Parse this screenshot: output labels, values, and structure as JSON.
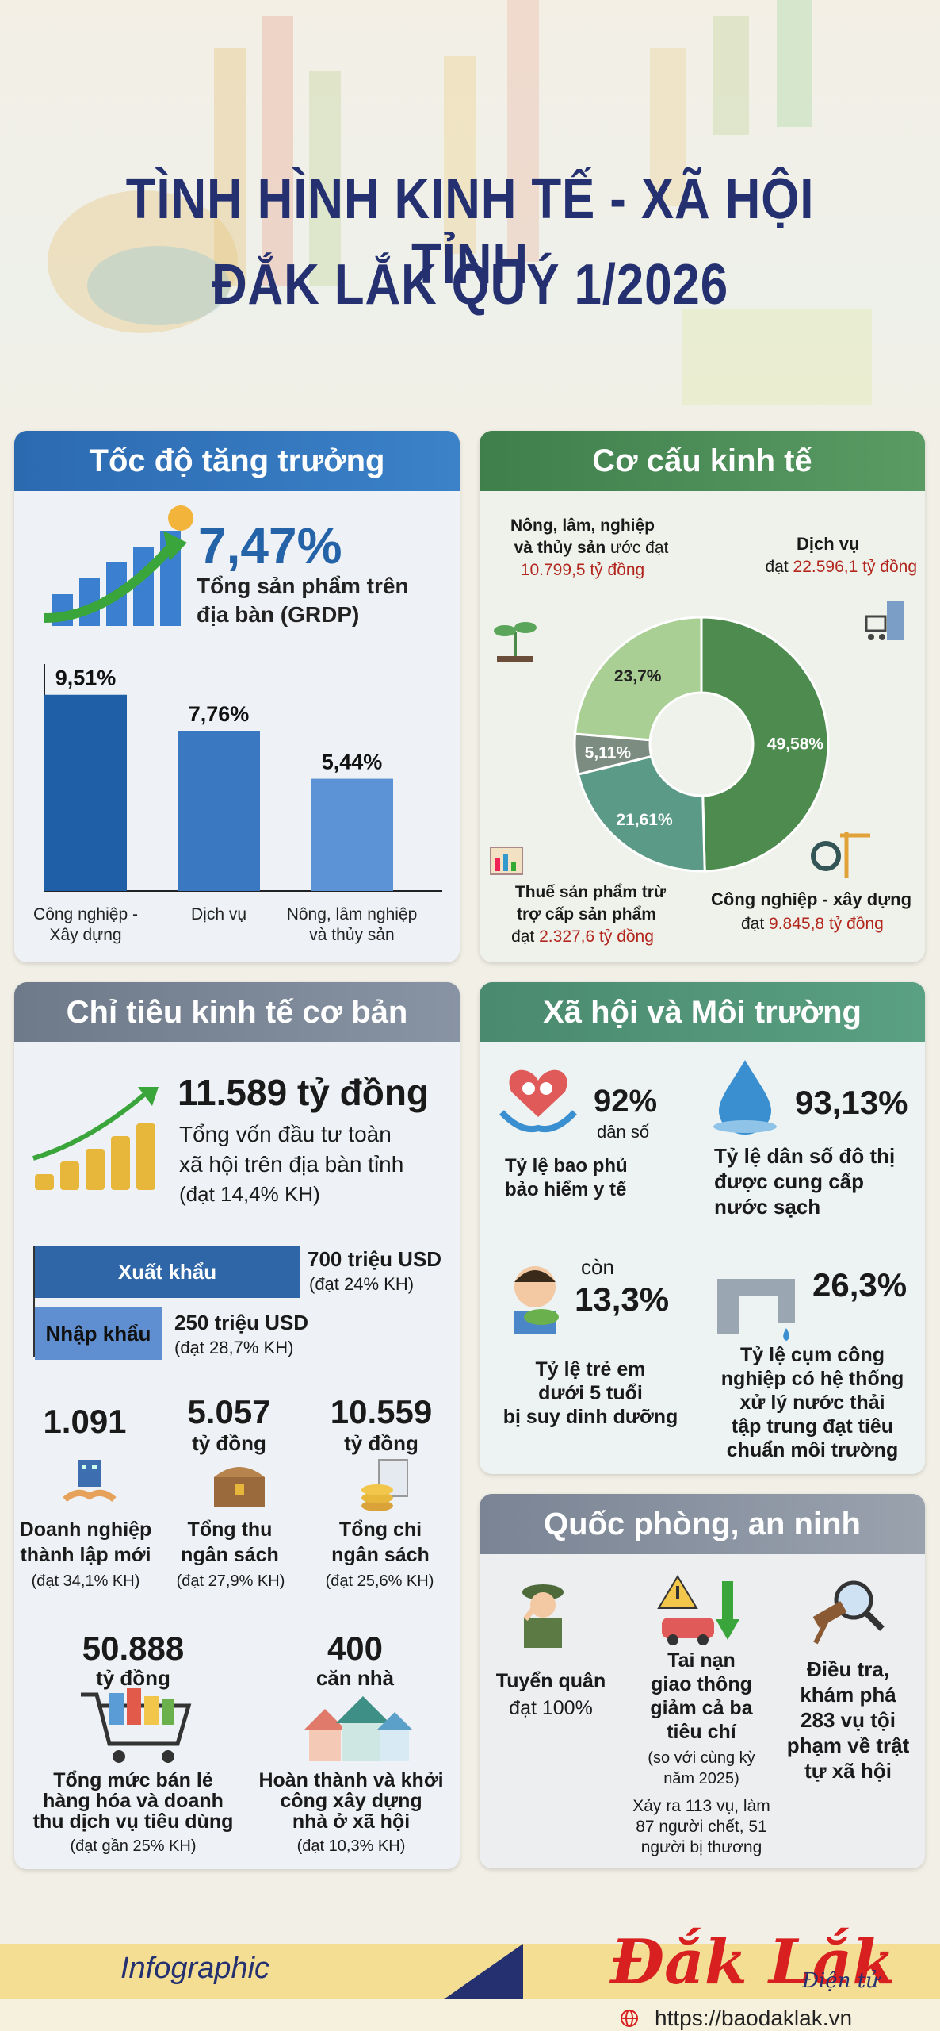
{
  "header": {
    "title_line1": "TÌNH HÌNH KINH TẾ - XÃ HỘI TỈNH",
    "title_line2": "ĐẮK LẮK QUÝ 1/2026"
  },
  "growth": {
    "title": "Tốc độ tăng trưởng",
    "value": "7,47%",
    "desc_line1": "Tổng sản phẩm trên",
    "desc_line2": "địa bàn (GRDP)",
    "chart_data": {
      "type": "bar",
      "categories": [
        "Công nghiệp - Xây dựng",
        "Dịch vụ",
        "Nông, lâm nghiệp và thủy sản"
      ],
      "values": [
        9.51,
        7.76,
        5.44
      ],
      "labels": [
        "9,51%",
        "7,76%",
        "5,44%"
      ],
      "cat_lines": [
        [
          "Công nghiệp -",
          "Xây dựng"
        ],
        [
          "Dịch vụ",
          ""
        ],
        [
          "Nông, lâm nghiệp",
          "và thủy sản"
        ]
      ],
      "colors": [
        "#1f5fa8",
        "#3b78c2",
        "#5c93d6"
      ]
    }
  },
  "structure": {
    "title": "Cơ cấu kinh tế",
    "nong_label1": "Nông, lâm, nghiệp",
    "nong_label2": "và thủy sản",
    "nong_label3": "ước đạt",
    "nong_value": "10.799,5 tỷ đồng",
    "dv_label": "Dịch vụ",
    "dv_prefix": "đạt",
    "dv_value": "22.596,1 tỷ đồng",
    "thue_label1": "Thuế sản phẩm trừ",
    "thue_label2": "trợ cấp sản phẩm",
    "thue_prefix": "đạt",
    "thue_value": "2.327,6 tỷ đồng",
    "cn_label": "Công nghiệp - xây dựng",
    "cn_prefix": "đạt",
    "cn_value": "9.845,8 tỷ đồng",
    "chart_data": {
      "type": "pie",
      "donut": true,
      "slices": [
        {
          "name": "Dịch vụ",
          "value": 49.58,
          "label": "49,58%",
          "color": "#4e8b4e"
        },
        {
          "name": "Công nghiệp - xây dựng",
          "value": 21.61,
          "label": "21,61%",
          "color": "#5b9a86"
        },
        {
          "name": "Thuế sản phẩm trừ trợ cấp sản phẩm",
          "value": 5.11,
          "label": "5,11%",
          "color": "#7c8c80"
        },
        {
          "name": "Nông, lâm, nghiệp và thủy sản",
          "value": 23.7,
          "label": "23,7%",
          "color": "#a9cf94"
        }
      ]
    }
  },
  "basic": {
    "title": "Chỉ tiêu kinh tế cơ bản",
    "invest_value": "11.589 tỷ đồng",
    "invest_desc1": "Tổng vốn đầu tư toàn",
    "invest_desc2": "xã hội trên địa bàn tỉnh",
    "invest_note": "(đạt 14,4% KH)",
    "export_label": "Xuất khẩu",
    "export_value": "700 triệu USD",
    "export_note": "(đạt 24% KH)",
    "import_label": "Nhập khẩu",
    "import_value": "250 triệu USD",
    "import_note": "(đạt 28,7% KH)",
    "dn_value": "1.091",
    "dn_l1": "Doanh nghiệp",
    "dn_l2": "thành lập mới",
    "dn_note": "(đạt 34,1% KH)",
    "thu_value": "5.057",
    "thu_unit": "tỷ đồng",
    "thu_l1": "Tổng thu",
    "thu_l2": "ngân sách",
    "thu_note": "(đạt 27,9% KH)",
    "chi_value": "10.559",
    "chi_unit": "tỷ đồng",
    "chi_l1": "Tổng chi",
    "chi_l2": "ngân sách",
    "chi_note": "(đạt 25,6% KH)",
    "ban_value": "50.888",
    "ban_unit": "tỷ đồng",
    "ban_l1": "Tổng mức bán lẻ",
    "ban_l2": "hàng hóa và doanh",
    "ban_l3": "thu dịch vụ tiêu dùng",
    "ban_note": "(đạt gần 25% KH)",
    "nha_value": "400",
    "nha_unit": "căn nhà",
    "nha_l1": "Hoàn thành và khởi",
    "nha_l2": "công xây dựng",
    "nha_l3": "nhà ở xã hội",
    "nha_note": "(đạt 10,3% KH)"
  },
  "social": {
    "title": "Xã hội và Môi trường",
    "bh_value": "92%",
    "bh_unit": "dân số",
    "bh_l1": "Tỷ lệ bao phủ",
    "bh_l2": "bảo hiểm y tế",
    "nuoc_value": "93,13%",
    "nuoc_l1": "Tỷ lệ dân số đô thị",
    "nuoc_l2": "được cung cấp",
    "nuoc_l3": "nước sạch",
    "tre_pre": "còn",
    "tre_value": "13,3%",
    "tre_l1": "Tỷ lệ trẻ em",
    "tre_l2": "dưới 5 tuổi",
    "tre_l3": "bị suy dinh dưỡng",
    "cum_value": "26,3%",
    "cum_l1": "Tỷ lệ cụm công",
    "cum_l2": "nghiệp có hệ thống",
    "cum_l3": "xử lý nước thải",
    "cum_l4": "tập trung đạt tiêu",
    "cum_l5": "chuẩn môi trường"
  },
  "defense": {
    "title": "Quốc phòng, an ninh",
    "tq_l1": "Tuyển quân",
    "tq_l2": "đạt 100%",
    "tn_l1": "Tai nạn",
    "tn_l2": "giao thông",
    "tn_l3": "giảm cả ba",
    "tn_l4": "tiêu chí",
    "tn_n1": "(so với cùng kỳ",
    "tn_n2": "năm 2025)",
    "tn_d1": "Xảy ra 113 vụ, làm",
    "tn_d2": "87 người chết, 51",
    "tn_d3": "người bị thương",
    "dt_l1": "Điều tra,",
    "dt_l2": "khám phá",
    "dt_l3": "283 vụ tội",
    "dt_l4": "phạm về trật",
    "dt_l5": "tự xã hội"
  },
  "footer": {
    "tag": "Infographic",
    "brand": "Đắk Lắk",
    "brand_sub": "Điện tử",
    "url": "https://baodaklak.vn"
  },
  "colors": {
    "title": "#24306f",
    "blue_head": "#2f6fb4",
    "green_head": "#4a8a56",
    "gray_head": "#7a8494",
    "red": "#b3261e"
  }
}
